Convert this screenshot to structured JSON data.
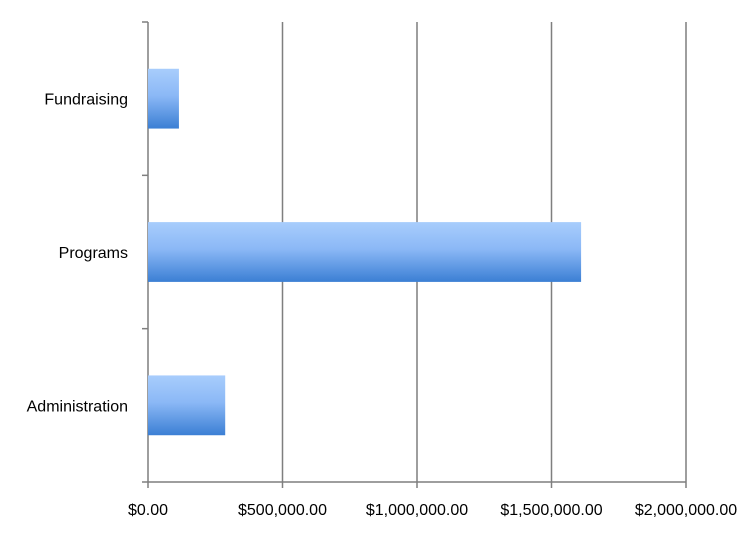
{
  "chart_data": {
    "type": "bar",
    "orientation": "horizontal",
    "categories": [
      "Fundraising",
      "Programs",
      "Administration"
    ],
    "values": [
      115000,
      1610000,
      287000
    ],
    "x_ticks": [
      0,
      500000,
      1000000,
      1500000,
      2000000
    ],
    "x_tick_labels": [
      "$0.00",
      "$500,000.00",
      "$1,000,000.00",
      "$1,500,000.00",
      "$2,000,000.00"
    ],
    "xlim": [
      0,
      2000000
    ],
    "title": "",
    "xlabel": "",
    "ylabel": "",
    "grid": "vertical major gridlines",
    "legend": "none",
    "colors": {
      "bar_top": "#a8cdfc",
      "bar_mid": "#8bb8f6",
      "bar_bottom": "#3b7fd4",
      "gridline": "#7f7f7f",
      "axis": "#7f7f7f"
    }
  }
}
